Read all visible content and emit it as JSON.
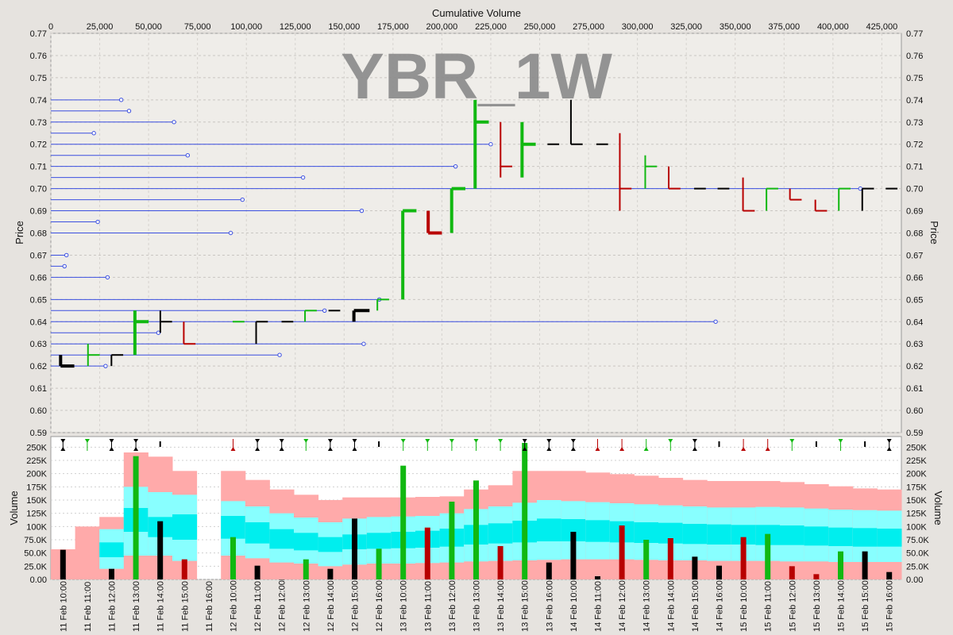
{
  "chart_data": [
    {
      "type": "price-volume-bar",
      "title": "YBR_1W",
      "x_top_label": "Cumulative Volume",
      "ylabel": "Price",
      "ylim": [
        0.59,
        0.77
      ],
      "xlim": [
        0,
        435000
      ],
      "y_ticks": [
        "0.59",
        "0.60",
        "0.61",
        "0.62",
        "0.63",
        "0.64",
        "0.65",
        "0.66",
        "0.67",
        "0.68",
        "0.69",
        "0.70",
        "0.71",
        "0.72",
        "0.73",
        "0.74",
        "0.75",
        "0.76",
        "0.77"
      ],
      "x_ticks": [
        "0",
        "25,000",
        "50,000",
        "75,000",
        "100,000",
        "125,000",
        "150,000",
        "175,000",
        "200,000",
        "225,000",
        "250,000",
        "275,000",
        "300,000",
        "325,000",
        "350,000",
        "375,000",
        "400,000",
        "425,000"
      ],
      "colors": {
        "up": "#11b811",
        "down": "#b80000",
        "flat": "#000000",
        "level": "#3b4fe0"
      },
      "levels": [
        {
          "price": 0.74,
          "volume": 36000
        },
        {
          "price": 0.735,
          "volume": 40000
        },
        {
          "price": 0.73,
          "volume": 63000
        },
        {
          "price": 0.725,
          "volume": 22000
        },
        {
          "price": 0.72,
          "volume": 225000
        },
        {
          "price": 0.715,
          "volume": 70000
        },
        {
          "price": 0.71,
          "volume": 207000
        },
        {
          "price": 0.705,
          "volume": 129000
        },
        {
          "price": 0.7,
          "volume": 414000
        },
        {
          "price": 0.695,
          "volume": 98000
        },
        {
          "price": 0.69,
          "volume": 159000
        },
        {
          "price": 0.685,
          "volume": 24000
        },
        {
          "price": 0.68,
          "volume": 92000
        },
        {
          "price": 0.67,
          "volume": 8000
        },
        {
          "price": 0.665,
          "volume": 7000
        },
        {
          "price": 0.66,
          "volume": 29000
        },
        {
          "price": 0.65,
          "volume": 168000
        },
        {
          "price": 0.645,
          "volume": 140000
        },
        {
          "price": 0.64,
          "volume": 340000
        },
        {
          "price": 0.635,
          "volume": 55000
        },
        {
          "price": 0.63,
          "volume": 160000
        },
        {
          "price": 0.625,
          "volume": 117000
        },
        {
          "price": 0.62,
          "volume": 28000
        }
      ],
      "bars": [
        {
          "x0": 5000,
          "x1": 12000,
          "high": 0.625,
          "low": 0.62,
          "open": 0.625,
          "close": 0.62,
          "color": "flat"
        },
        {
          "x0": 19000,
          "x1": 25000,
          "high": 0.63,
          "low": 0.62,
          "open": 0.625,
          "close": 0.625,
          "color": "up"
        },
        {
          "x0": 31000,
          "x1": 37000,
          "high": 0.625,
          "low": 0.62,
          "open": 0.625,
          "close": 0.625,
          "color": "flat"
        },
        {
          "x0": 43000,
          "x1": 50000,
          "high": 0.645,
          "low": 0.625,
          "open": 0.64,
          "close": 0.64,
          "color": "up"
        },
        {
          "x0": 56000,
          "x1": 62000,
          "high": 0.645,
          "low": 0.635,
          "open": 0.64,
          "close": 0.64,
          "color": "flat"
        },
        {
          "x0": 68000,
          "x1": 74000,
          "high": 0.64,
          "low": 0.63,
          "open": 0.64,
          "close": 0.63,
          "color": "down"
        },
        {
          "x0": 93000,
          "x1": 99000,
          "high": 0.64,
          "low": 0.64,
          "open": 0.64,
          "close": 0.64,
          "color": "up"
        },
        {
          "x0": 105000,
          "x1": 111000,
          "high": 0.64,
          "low": 0.63,
          "open": 0.64,
          "close": 0.64,
          "color": "flat"
        },
        {
          "x0": 118000,
          "x1": 124000,
          "high": 0.64,
          "low": 0.64,
          "open": 0.64,
          "close": 0.64,
          "color": "flat"
        },
        {
          "x0": 130000,
          "x1": 136000,
          "high": 0.645,
          "low": 0.64,
          "open": 0.64,
          "close": 0.645,
          "color": "up"
        },
        {
          "x0": 142000,
          "x1": 148000,
          "high": 0.645,
          "low": 0.645,
          "open": 0.645,
          "close": 0.645,
          "color": "flat"
        },
        {
          "x0": 155000,
          "x1": 163000,
          "high": 0.645,
          "low": 0.64,
          "open": 0.64,
          "close": 0.645,
          "color": "flat"
        },
        {
          "x0": 167000,
          "x1": 173000,
          "high": 0.65,
          "low": 0.645,
          "open": 0.65,
          "close": 0.65,
          "color": "up"
        },
        {
          "x0": 180000,
          "x1": 187000,
          "high": 0.69,
          "low": 0.65,
          "open": 0.65,
          "close": 0.69,
          "color": "up"
        },
        {
          "x0": 193000,
          "x1": 200000,
          "high": 0.69,
          "low": 0.68,
          "open": 0.69,
          "close": 0.68,
          "color": "down"
        },
        {
          "x0": 205000,
          "x1": 212000,
          "high": 0.7,
          "low": 0.68,
          "open": 0.68,
          "close": 0.7,
          "color": "up"
        },
        {
          "x0": 217000,
          "x1": 224000,
          "high": 0.74,
          "low": 0.7,
          "open": 0.7,
          "close": 0.73,
          "color": "up"
        },
        {
          "x0": 230000,
          "x1": 236000,
          "high": 0.73,
          "low": 0.705,
          "open": 0.73,
          "close": 0.71,
          "color": "down"
        },
        {
          "x0": 241000,
          "x1": 248000,
          "high": 0.73,
          "low": 0.705,
          "open": 0.71,
          "close": 0.72,
          "color": "up"
        },
        {
          "x0": 254000,
          "x1": 260000,
          "high": 0.72,
          "low": 0.72,
          "open": 0.72,
          "close": 0.72,
          "color": "flat"
        },
        {
          "x0": 266000,
          "x1": 272000,
          "high": 0.74,
          "low": 0.72,
          "open": 0.74,
          "close": 0.72,
          "color": "flat"
        },
        {
          "x0": 279000,
          "x1": 285000,
          "high": 0.72,
          "low": 0.72,
          "open": 0.72,
          "close": 0.72,
          "color": "flat"
        },
        {
          "x0": 291000,
          "x1": 297000,
          "high": 0.725,
          "low": 0.69,
          "open": 0.72,
          "close": 0.7,
          "color": "down"
        },
        {
          "x0": 304000,
          "x1": 310000,
          "high": 0.715,
          "low": 0.7,
          "open": 0.7,
          "close": 0.71,
          "color": "up"
        },
        {
          "x0": 316000,
          "x1": 322000,
          "high": 0.71,
          "low": 0.7,
          "open": 0.71,
          "close": 0.7,
          "color": "down"
        },
        {
          "x0": 329000,
          "x1": 335000,
          "high": 0.7,
          "low": 0.7,
          "open": 0.7,
          "close": 0.7,
          "color": "flat"
        },
        {
          "x0": 341000,
          "x1": 347000,
          "high": 0.7,
          "low": 0.7,
          "open": 0.7,
          "close": 0.7,
          "color": "flat"
        },
        {
          "x0": 354000,
          "x1": 360000,
          "high": 0.705,
          "low": 0.69,
          "open": 0.705,
          "close": 0.69,
          "color": "down"
        },
        {
          "x0": 366000,
          "x1": 372000,
          "high": 0.7,
          "low": 0.69,
          "open": 0.7,
          "close": 0.7,
          "color": "up"
        },
        {
          "x0": 378000,
          "x1": 384000,
          "high": 0.7,
          "low": 0.695,
          "open": 0.7,
          "close": 0.695,
          "color": "down"
        },
        {
          "x0": 391000,
          "x1": 397000,
          "high": 0.695,
          "low": 0.69,
          "open": 0.695,
          "close": 0.69,
          "color": "down"
        },
        {
          "x0": 403000,
          "x1": 409000,
          "high": 0.7,
          "low": 0.69,
          "open": 0.7,
          "close": 0.7,
          "color": "up"
        },
        {
          "x0": 415000,
          "x1": 421000,
          "high": 0.7,
          "low": 0.69,
          "open": 0.7,
          "close": 0.7,
          "color": "flat"
        },
        {
          "x0": 427000,
          "x1": 433000,
          "high": 0.7,
          "low": 0.7,
          "open": 0.7,
          "close": 0.7,
          "color": "flat"
        }
      ]
    },
    {
      "type": "bar",
      "ylabel": "Volume",
      "ylim": [
        0,
        270000
      ],
      "y_ticks": [
        "0.00",
        "25.0K",
        "50.0K",
        "75.0K",
        "100K",
        "125K",
        "150K",
        "175K",
        "200K",
        "225K",
        "250K"
      ],
      "categories": [
        "11 Feb 10:00",
        "11 Feb 11:00",
        "11 Feb 12:00",
        "11 Feb 13:00",
        "11 Feb 14:00",
        "11 Feb 15:00",
        "11 Feb 16:00",
        "12 Feb 10:00",
        "12 Feb 11:00",
        "12 Feb 12:00",
        "12 Feb 13:00",
        "12 Feb 14:00",
        "12 Feb 15:00",
        "12 Feb 16:00",
        "13 Feb 10:00",
        "13 Feb 11:00",
        "13 Feb 12:00",
        "13 Feb 13:00",
        "13 Feb 14:00",
        "13 Feb 15:00",
        "13 Feb 16:00",
        "14 Feb 10:00",
        "14 Feb 11:00",
        "14 Feb 12:00",
        "14 Feb 13:00",
        "14 Feb 14:00",
        "14 Feb 15:00",
        "14 Feb 16:00",
        "15 Feb 10:00",
        "15 Feb 11:00",
        "15 Feb 12:00",
        "15 Feb 13:00",
        "15 Feb 14:00",
        "15 Feb 15:00",
        "15 Feb 16:00"
      ],
      "volumes": [
        {
          "a": 56000,
          "c": "flat"
        },
        {
          "b": 97000,
          "c": "up"
        },
        {
          "a": 20000,
          "c": "flat"
        },
        {
          "a": 233000,
          "c": "up"
        },
        {
          "a": 110000,
          "c": "flat"
        },
        {
          "a": 38000,
          "c": "down"
        },
        null,
        {
          "a": 80000,
          "c": "up"
        },
        {
          "a": 26000,
          "c": "flat"
        },
        {
          "a": 0,
          "c": "flat"
        },
        {
          "a": 38000,
          "c": "up"
        },
        {
          "a": 20000,
          "c": "flat"
        },
        {
          "a": 115000,
          "c": "flat"
        },
        {
          "a": 58000,
          "c": "up"
        },
        {
          "a": 215000,
          "c": "up"
        },
        {
          "a": 98000,
          "c": "down"
        },
        {
          "a": 147000,
          "c": "up"
        },
        {
          "a": 187000,
          "c": "up"
        },
        {
          "a": 63000,
          "c": "down"
        },
        {
          "a": 258000,
          "c": "up"
        },
        {
          "a": 32000,
          "c": "flat"
        },
        {
          "a": 90000,
          "c": "flat"
        },
        {
          "a": 6000,
          "c": "flat"
        },
        {
          "a": 102000,
          "c": "down"
        },
        {
          "a": 75000,
          "c": "up"
        },
        {
          "a": 78000,
          "c": "down"
        },
        {
          "a": 43000,
          "c": "flat"
        },
        {
          "a": 26000,
          "c": "flat"
        },
        {
          "a": 80000,
          "c": "down"
        },
        {
          "a": 86000,
          "c": "up"
        },
        {
          "a": 25000,
          "c": "down"
        },
        {
          "a": 10000,
          "c": "down"
        },
        {
          "a": 53000,
          "c": "up"
        },
        {
          "a": 53000,
          "c": "flat"
        },
        {
          "a": 14000,
          "c": "flat"
        }
      ],
      "band_top": [
        57000,
        100000,
        118000,
        240000,
        232000,
        205000,
        null,
        205000,
        188000,
        170000,
        160000,
        150000,
        155000,
        155000,
        155000,
        156000,
        157000,
        170000,
        178000,
        205000,
        205000,
        205000,
        202000,
        199000,
        196000,
        192000,
        188000,
        186000,
        186000,
        186000,
        184000,
        180000,
        176000,
        172000,
        170000
      ],
      "band_mid_hi": [
        0,
        0,
        95000,
        175000,
        165000,
        160000,
        null,
        148000,
        138000,
        125000,
        117000,
        108000,
        115000,
        118000,
        119000,
        120000,
        125000,
        133000,
        138000,
        145000,
        150000,
        148000,
        146000,
        144000,
        142000,
        140000,
        138000,
        136000,
        136000,
        137000,
        136000,
        134000,
        132000,
        131000,
        130000
      ],
      "band_core_hi": [
        0,
        0,
        70000,
        135000,
        118000,
        123000,
        null,
        120000,
        108000,
        95000,
        88000,
        80000,
        85000,
        88000,
        90000,
        92000,
        96000,
        103000,
        106000,
        111000,
        115000,
        114000,
        112000,
        110000,
        108000,
        107000,
        105000,
        104000,
        103000,
        103000,
        102000,
        100000,
        98000,
        97000,
        96000
      ],
      "band_core_lo": [
        0,
        0,
        42000,
        90000,
        80000,
        75000,
        null,
        77000,
        68000,
        58000,
        55000,
        52000,
        57000,
        58000,
        59000,
        60000,
        62000,
        66000,
        68000,
        70000,
        72000,
        72000,
        71000,
        70000,
        69000,
        68000,
        67000,
        66000,
        66000,
        65000,
        65000,
        64000,
        63000,
        62000,
        62000
      ],
      "band_mid_lo": [
        0,
        0,
        20000,
        45000,
        45000,
        35000,
        null,
        45000,
        40000,
        32000,
        30000,
        25000,
        28000,
        30000,
        30000,
        31000,
        32000,
        34000,
        35000,
        36000,
        37000,
        38000,
        38000,
        38000,
        37000,
        36000,
        36000,
        35000,
        35000,
        35000,
        34000,
        34000,
        33000,
        33000,
        33000
      ],
      "markers": [
        "bar",
        "up",
        "bar",
        "bar",
        "tick",
        null,
        null,
        "down",
        "bar",
        "bar",
        "up",
        "bar",
        "bar",
        "tick",
        "up",
        "up",
        "up",
        "up",
        "up",
        "bar",
        "bar",
        "bar",
        "down",
        "down",
        "down",
        "up",
        "bar",
        "tick",
        "down",
        "down",
        "up",
        "tick",
        "up",
        "tick",
        "bar"
      ],
      "marker_colors": [
        "flat",
        "up",
        "flat",
        "flat",
        "flat",
        null,
        null,
        "down",
        "flat",
        "flat",
        "up",
        "flat",
        "flat",
        "flat",
        "up",
        "up",
        "up",
        "up",
        "up",
        "flat",
        "flat",
        "flat",
        "down",
        "down",
        "up",
        "up",
        "flat",
        "flat",
        "down",
        "down",
        "up",
        "flat",
        "up",
        "flat",
        "flat"
      ]
    }
  ]
}
